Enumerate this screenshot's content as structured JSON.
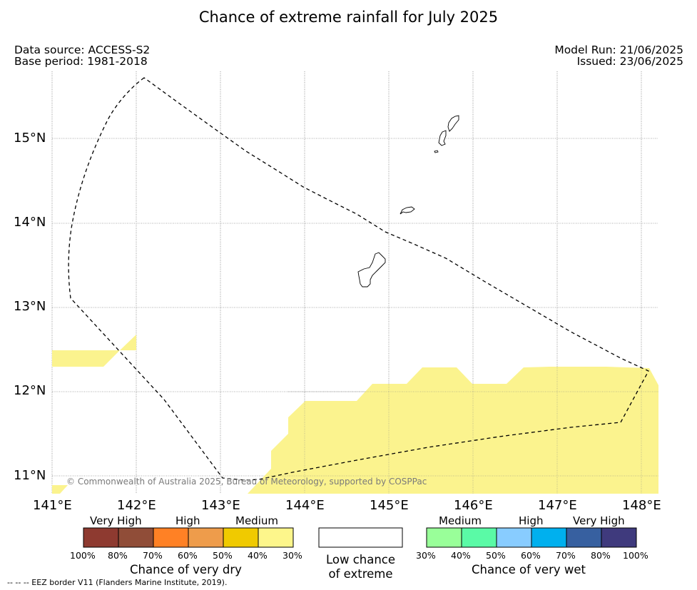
{
  "title": "Chance of extreme rainfall for July 2025",
  "meta": {
    "data_source": "Data source: ACCESS-S2",
    "base_period": "Base period: 1981-2018",
    "model_run": "Model Run: 21/06/2025",
    "issued": "Issued: 23/06/2025"
  },
  "map": {
    "lat_labels": [
      "15°N",
      "14°N",
      "13°N",
      "12°N",
      "11°N"
    ],
    "lon_labels": [
      "141°E",
      "142°E",
      "143°E",
      "144°E",
      "145°E",
      "146°E",
      "147°E",
      "148°E"
    ],
    "copyright": "© Commonwealth of Australia 2025, Bureau of Meteorology, supported by COSPPac",
    "fill_color": "#fbf38e",
    "coast_color": "#000000",
    "eez_color": "#000000"
  },
  "legend_dry": {
    "categories": [
      "Very High",
      "High",
      "Medium"
    ],
    "colors": [
      "#8e3a30",
      "#904d38",
      "#ff8125",
      "#ee9c4b",
      "#f0ca00",
      "#fdf68b"
    ],
    "ticks": [
      "100%",
      "80%",
      "70%",
      "60%",
      "50%",
      "40%",
      "30%"
    ],
    "title": "Chance of very dry"
  },
  "legend_low": {
    "color": "#ffffff",
    "line1": "Low chance",
    "line2": "of extreme"
  },
  "legend_wet": {
    "categories": [
      "Medium",
      "High",
      "Very High"
    ],
    "colors": [
      "#99ff99",
      "#5afaa6",
      "#88ccff",
      "#00b0ee",
      "#3760a0",
      "#3f3a7d"
    ],
    "ticks": [
      "30%",
      "40%",
      "50%",
      "60%",
      "70%",
      "80%",
      "100%"
    ],
    "title": "Chance of very wet"
  },
  "footnote": "-- -- -- EEZ border V11 (Flanders Marine Institute, 2019)."
}
